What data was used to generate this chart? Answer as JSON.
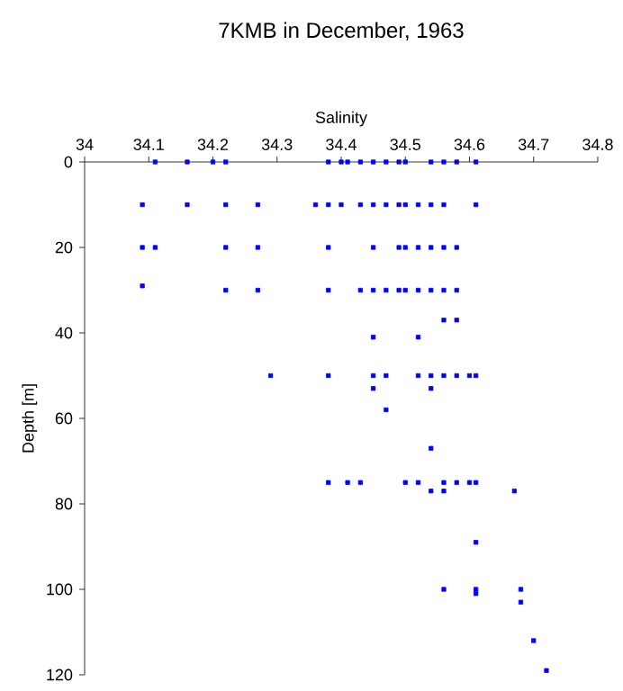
{
  "chart_data": {
    "type": "scatter",
    "title": "7KMB in December, 1963",
    "xlabel": "Salinity",
    "ylabel": "Depth [m]",
    "xlim": [
      34,
      34.8
    ],
    "xticks": [
      34,
      34.1,
      34.2,
      34.3,
      34.4,
      34.5,
      34.6,
      34.7,
      34.8
    ],
    "ylim": [
      120,
      0
    ],
    "yticks": [
      0,
      20,
      40,
      60,
      80,
      100,
      120
    ],
    "grid": false,
    "marker": "square",
    "series": [
      {
        "color": "#0000ff",
        "x": [
          34.11,
          34.16,
          34.2,
          34.22,
          34.38,
          34.4,
          34.41,
          34.43,
          34.45,
          34.47,
          34.49,
          34.5,
          34.54,
          34.56,
          34.58,
          34.61,
          34.09,
          34.16,
          34.22,
          34.27,
          34.36,
          34.38,
          34.4,
          34.43,
          34.45,
          34.47,
          34.49,
          34.5,
          34.52,
          34.54,
          34.56,
          34.61,
          34.09,
          34.11,
          34.22,
          34.27,
          34.38,
          34.45,
          34.49,
          34.5,
          34.52,
          34.54,
          34.56,
          34.58,
          34.09,
          34.22,
          34.27,
          34.38,
          34.43,
          34.45,
          34.47,
          34.49,
          34.5,
          34.52,
          34.54,
          34.56,
          34.58,
          34.56,
          34.58,
          34.45,
          34.52,
          34.29,
          34.38,
          34.45,
          34.47,
          34.52,
          34.54,
          34.56,
          34.58,
          34.6,
          34.61,
          34.45,
          34.54,
          34.47,
          34.54,
          34.38,
          34.41,
          34.43,
          34.5,
          34.52,
          34.56,
          34.58,
          34.6,
          34.61,
          34.54,
          34.56,
          34.67,
          34.61,
          34.56,
          34.61,
          34.61,
          34.68,
          34.68,
          34.7,
          34.72
        ],
        "values": [
          0,
          0,
          0,
          0,
          0,
          0,
          0,
          0,
          0,
          0,
          0,
          0,
          0,
          0,
          0,
          0,
          10,
          10,
          10,
          10,
          10,
          10,
          10,
          10,
          10,
          10,
          10,
          10,
          10,
          10,
          10,
          10,
          20,
          20,
          20,
          20,
          20,
          20,
          20,
          20,
          20,
          20,
          20,
          20,
          29,
          30,
          30,
          30,
          30,
          30,
          30,
          30,
          30,
          30,
          30,
          30,
          30,
          37,
          37,
          41,
          41,
          50,
          50,
          50,
          50,
          50,
          50,
          50,
          50,
          50,
          50,
          53,
          53,
          58,
          67,
          75,
          75,
          75,
          75,
          75,
          75,
          75,
          75,
          75,
          77,
          77,
          77,
          89,
          100,
          100,
          101,
          100,
          103,
          112,
          119
        ]
      }
    ]
  }
}
